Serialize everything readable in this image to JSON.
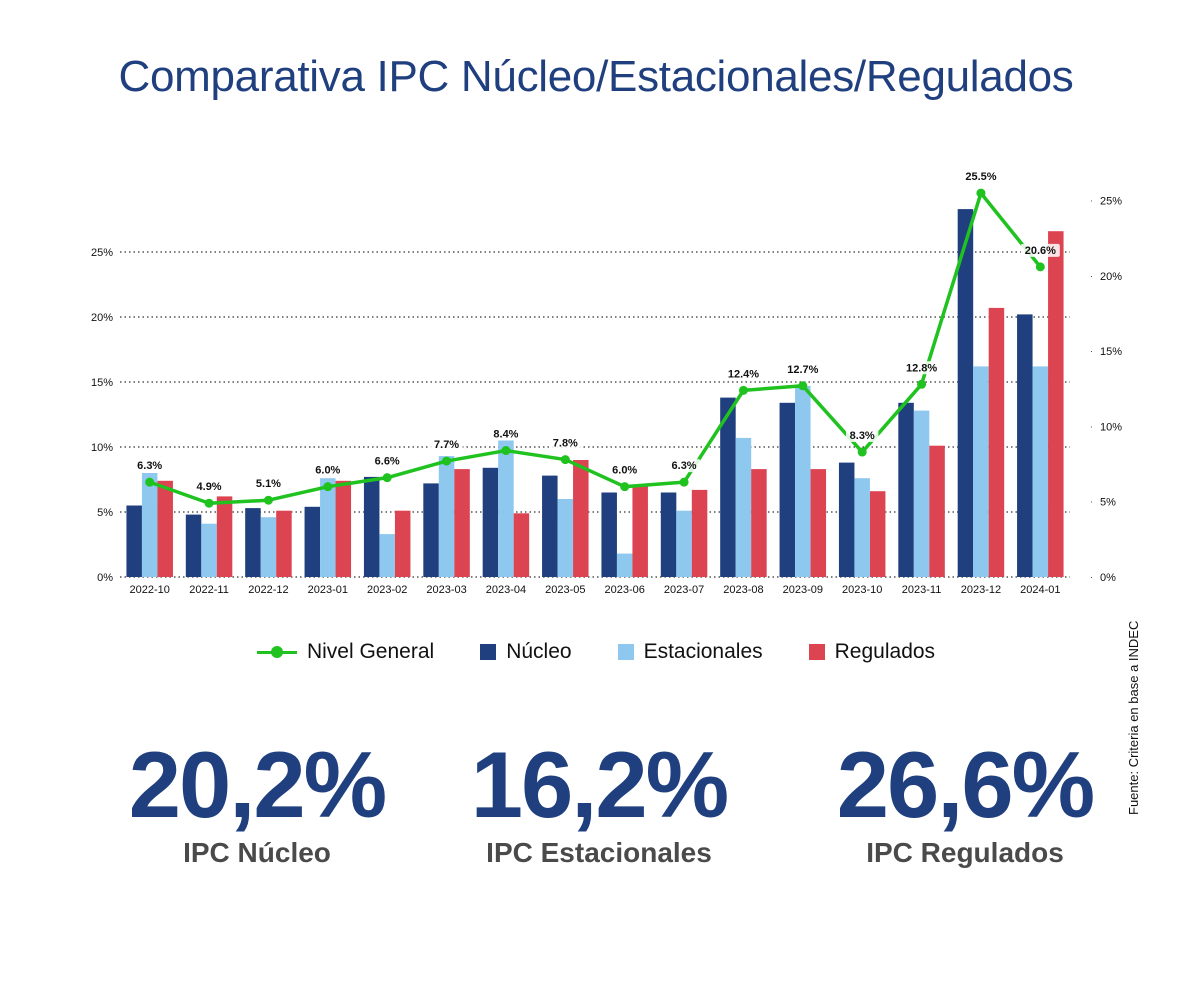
{
  "title": "Comparativa IPC Núcleo/Estacionales/Regulados",
  "colors": {
    "nucleo": "#1f3f7f",
    "estacionales": "#8ec8ef",
    "regulados": "#dc4452",
    "nivel_general": "#1fc21f",
    "title": "#1f3f7f"
  },
  "chart_data": {
    "type": "bar",
    "categories": [
      "2022-10",
      "2022-11",
      "2022-12",
      "2023-01",
      "2023-02",
      "2023-03",
      "2023-04",
      "2023-05",
      "2023-06",
      "2023-07",
      "2023-08",
      "2023-09",
      "2023-10",
      "2023-11",
      "2023-12",
      "2024-01"
    ],
    "series": [
      {
        "name": "Núcleo",
        "type": "bar",
        "axis": "left",
        "values": [
          5.5,
          4.8,
          5.3,
          5.4,
          7.7,
          7.2,
          8.4,
          7.8,
          6.5,
          6.5,
          13.8,
          13.4,
          8.8,
          13.4,
          28.3,
          20.2
        ]
      },
      {
        "name": "Estacionales",
        "type": "bar",
        "axis": "left",
        "values": [
          8.0,
          4.1,
          4.6,
          7.6,
          3.3,
          9.3,
          10.5,
          6.0,
          1.8,
          5.1,
          10.7,
          14.7,
          7.6,
          12.8,
          16.2,
          16.2
        ]
      },
      {
        "name": "Regulados",
        "type": "bar",
        "axis": "left",
        "values": [
          7.4,
          6.2,
          5.1,
          7.4,
          5.1,
          8.3,
          4.9,
          9.0,
          7.0,
          6.7,
          8.3,
          8.3,
          6.6,
          10.1,
          20.7,
          26.6
        ]
      },
      {
        "name": "Nivel General",
        "type": "line",
        "axis": "right",
        "values": [
          6.3,
          4.9,
          5.1,
          6.0,
          6.6,
          7.7,
          8.4,
          7.8,
          6.0,
          6.3,
          12.4,
          12.7,
          8.3,
          12.8,
          25.5,
          20.6
        ],
        "labels": [
          "6.3%",
          "4.9%",
          "5.1%",
          "6.0%",
          "6.6%",
          "7.7%",
          "8.4%",
          "7.8%",
          "6.0%",
          "6.3%",
          "12.4%",
          "12.7%",
          "8.3%",
          "12.8%",
          "25.5%",
          "20.6%"
        ]
      }
    ],
    "left_axis": {
      "ylim": [
        0,
        30
      ],
      "ticks": [
        0,
        5,
        10,
        15,
        20,
        25
      ],
      "tick_labels": [
        "0%",
        "5%",
        "10%",
        "15%",
        "20%",
        "25%"
      ]
    },
    "right_axis": {
      "ylim": [
        0,
        27.5
      ],
      "ticks": [
        0,
        5,
        10,
        15,
        20,
        25
      ],
      "tick_labels": [
        "0%",
        "5%",
        "10%",
        "15%",
        "20%",
        "25%"
      ]
    },
    "grid": true
  },
  "legend": [
    {
      "label": "Nivel General",
      "kind": "line",
      "color": "#1fc21f"
    },
    {
      "label": "Núcleo",
      "kind": "square",
      "color": "#1f3f7f"
    },
    {
      "label": "Estacionales",
      "kind": "square",
      "color": "#8ec8ef"
    },
    {
      "label": "Regulados",
      "kind": "square",
      "color": "#dc4452"
    }
  ],
  "stats": [
    {
      "value": "20,2%",
      "label": "IPC Núcleo"
    },
    {
      "value": "16,2%",
      "label": "IPC Estacionales"
    },
    {
      "value": "26,6%",
      "label": "IPC Regulados"
    }
  ],
  "source": "Fuente: Criteria en base a INDEC"
}
